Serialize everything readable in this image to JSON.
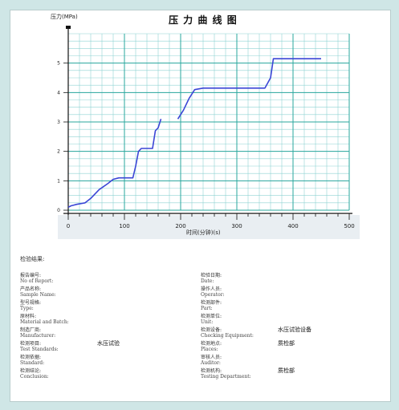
{
  "chart_data": {
    "type": "line",
    "title": "压 力 曲 线 图",
    "ylabel": "压力(MPa)",
    "xlabel": "时间(分钟)(s)",
    "xlim": [
      0,
      500
    ],
    "ylim": [
      0,
      6
    ],
    "x_ticks": [
      0,
      100,
      200,
      300,
      400,
      500
    ],
    "x_tick_labels": [
      "0",
      "100",
      "200",
      "300",
      "400",
      "500"
    ],
    "y_ticks": [
      0,
      1,
      2,
      3,
      4,
      5
    ],
    "y_tick_labels": [
      "0",
      "1",
      "2",
      "3",
      "4",
      "5"
    ],
    "grid": true,
    "series": [
      {
        "color": "#3b46d6",
        "segments": [
          [
            [
              0,
              0.1
            ],
            [
              5,
              0.15
            ],
            [
              15,
              0.2
            ],
            [
              30,
              0.25
            ],
            [
              40,
              0.4
            ],
            [
              55,
              0.7
            ],
            [
              70,
              0.9
            ],
            [
              80,
              1.05
            ],
            [
              90,
              1.1
            ],
            [
              100,
              1.1
            ],
            [
              115,
              1.1
            ],
            [
              120,
              1.5
            ],
            [
              125,
              2.0
            ],
            [
              130,
              2.1
            ],
            [
              140,
              2.1
            ],
            [
              150,
              2.1
            ],
            [
              155,
              2.7
            ],
            [
              160,
              2.8
            ],
            [
              165,
              3.1
            ]
          ],
          [
            [
              195,
              3.1
            ],
            [
              205,
              3.4
            ],
            [
              215,
              3.8
            ],
            [
              225,
              4.1
            ],
            [
              240,
              4.15
            ],
            [
              270,
              4.15
            ],
            [
              300,
              4.15
            ],
            [
              350,
              4.15
            ],
            [
              360,
              4.5
            ],
            [
              365,
              5.15
            ],
            [
              380,
              5.15
            ],
            [
              400,
              5.15
            ],
            [
              450,
              5.15
            ]
          ]
        ]
      }
    ]
  },
  "report": {
    "title": "检验结果:",
    "left": [
      {
        "cn": "报告编号:",
        "en": "No of Report:",
        "value": ""
      },
      {
        "cn": "产品名称:",
        "en": "Sample Name:",
        "value": ""
      },
      {
        "cn": "型号规格:",
        "en": "Type:",
        "value": ""
      },
      {
        "cn": "原材料:",
        "en": "Material and Batch:",
        "value": ""
      },
      {
        "cn": "制造厂商:",
        "en": "Manufacturer:",
        "value": ""
      },
      {
        "cn": "检测项目:",
        "en": "Test Standards:",
        "value": "水压试验"
      },
      {
        "cn": "检测依据:",
        "en": "Standard:",
        "value": ""
      },
      {
        "cn": "检测结论:",
        "en": "Conclusion:",
        "value": ""
      }
    ],
    "right": [
      {
        "cn": "检验日期:",
        "en": "Date:",
        "value": ""
      },
      {
        "cn": "操作人员:",
        "en": "Operator:",
        "value": ""
      },
      {
        "cn": "检测部件:",
        "en": "Part:",
        "value": ""
      },
      {
        "cn": "检测单位:",
        "en": "Unit:",
        "value": ""
      },
      {
        "cn": "检测设备:",
        "en": "Checking Equipment:",
        "value": "水压试验设备"
      },
      {
        "cn": "检测地点:",
        "en": "Places:",
        "value": "质检部"
      },
      {
        "cn": "审核人员:",
        "en": "Auditor:",
        "value": ""
      },
      {
        "cn": "检测机构:",
        "en": "Testing Department:",
        "value": "质检部"
      }
    ]
  }
}
